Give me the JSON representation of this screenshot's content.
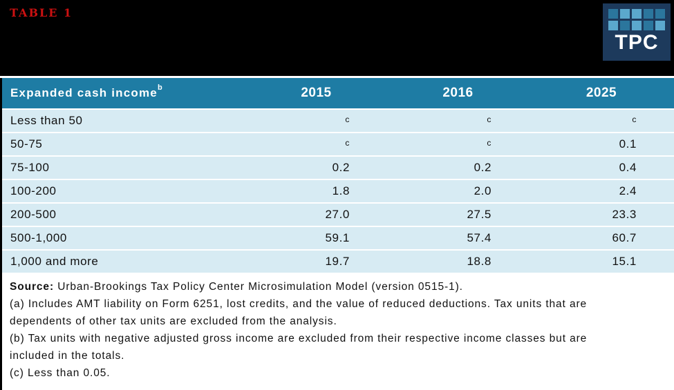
{
  "banner": {
    "table_label": "TABLE 1",
    "logo_text": "TPC",
    "logo_squares": [
      "dark",
      "light",
      "light",
      "dark",
      "dark",
      "light",
      "dark",
      "light",
      "dark",
      "light"
    ]
  },
  "table": {
    "header": {
      "col1": "Expanded cash income",
      "col1_sup": "b",
      "years": [
        "2015",
        "2016",
        "2025"
      ]
    },
    "rows": [
      {
        "label": "Less than 50",
        "values": [
          "c",
          "c",
          "c"
        ]
      },
      {
        "label": "50-75",
        "values": [
          "c",
          "c",
          "0.1"
        ]
      },
      {
        "label": "75-100",
        "values": [
          "0.2",
          "0.2",
          "0.4"
        ]
      },
      {
        "label": "100-200",
        "values": [
          "1.8",
          "2.0",
          "2.4"
        ]
      },
      {
        "label": "200-500",
        "values": [
          "27.0",
          "27.5",
          "23.3"
        ]
      },
      {
        "label": "500-1,000",
        "values": [
          "59.1",
          "57.4",
          "60.7"
        ]
      },
      {
        "label": "1,000 and more",
        "values": [
          "19.7",
          "18.8",
          "15.1"
        ]
      }
    ]
  },
  "footer": {
    "source_label": "Source:",
    "source_text": "Urban-Brookings Tax Policy Center Microsimulation Model (version 0515-1).",
    "note_lines": [
      "(a) Includes AMT liability on Form 6251, lost credits, and the value of reduced deductions. Tax units that are",
      "dependents of other tax units are excluded from the analysis.",
      "(b) Tax units with negative adjusted gross income are excluded from their respective income classes but are",
      "included in the totals.",
      "(c) Less than 0.05."
    ]
  },
  "colors": {
    "banner_black": "#000000",
    "table_label_red": "#cc1111",
    "header_teal": "#1e7ca4",
    "row_blue": "#d7ebf3",
    "logo_navy": "#1d3a5c",
    "logo_square_light": "#5ba8cd",
    "logo_square_dark": "#2b769d"
  }
}
